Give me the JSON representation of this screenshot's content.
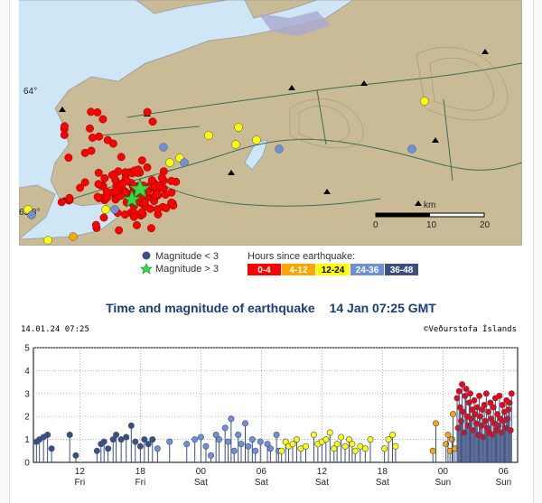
{
  "map": {
    "lat_labels": [
      "64°",
      "63.8°"
    ],
    "scale_label": "km",
    "scale_ticks": [
      "0",
      "10",
      "20"
    ]
  },
  "legend": {
    "magnitude_small": "Magnitude < 3",
    "magnitude_large": "Magnitude > 3",
    "hours_label": "Hours since earthquake:",
    "hours_bins": [
      {
        "label": "0-4",
        "color": "#ff0000",
        "text_color": "#ffffff"
      },
      {
        "label": "4-12",
        "color": "#ffa500",
        "text_color": "#ffffff"
      },
      {
        "label": "12-24",
        "color": "#ffff00",
        "text_color": "#000000"
      },
      {
        "label": "24-36",
        "color": "#6f8fd6",
        "text_color": "#ffffff"
      },
      {
        "label": "36-48",
        "color": "#3b4f80",
        "text_color": "#ffffff"
      }
    ]
  },
  "title": {
    "main": "Time and magnitude of earthquake",
    "timestamp": "14 Jan 07:25 GMT"
  },
  "chart_header": {
    "left": "14.01.24 07:25",
    "right": "©Veðurstofa Íslands"
  },
  "chart_data": {
    "type": "scatter",
    "y_ticks": [
      "0",
      "1",
      "2",
      "3",
      "4",
      "5"
    ],
    "ylim": [
      0,
      5
    ],
    "x_ticks": [
      {
        "hour": "12",
        "day": "Fri"
      },
      {
        "hour": "18",
        "day": "Fri"
      },
      {
        "hour": "00",
        "day": "Sat"
      },
      {
        "hour": "06",
        "day": "Sat"
      },
      {
        "hour": "12",
        "day": "Sat"
      },
      {
        "hour": "18",
        "day": "Sat"
      },
      {
        "hour": "00",
        "day": "Sun"
      },
      {
        "hour": "06",
        "day": "Sun"
      }
    ],
    "series": [
      {
        "color": "#3b4f80",
        "points": [
          [
            0.3,
            0.9
          ],
          [
            0.6,
            1.0
          ],
          [
            1.0,
            1.1
          ],
          [
            1.4,
            1.2
          ],
          [
            1.8,
            0.6
          ],
          [
            3.6,
            1.2
          ],
          [
            4.2,
            0.3
          ],
          [
            6.3,
            0.5
          ],
          [
            6.7,
            0.8
          ],
          [
            7.0,
            0.9
          ],
          [
            7.4,
            0.6
          ],
          [
            7.9,
            1.0
          ],
          [
            8.2,
            1.2
          ],
          [
            8.7,
            1.0
          ],
          [
            9.2,
            1.1
          ],
          [
            9.7,
            1.6
          ],
          [
            10.1,
            0.9
          ],
          [
            10.6,
            0.7
          ],
          [
            11.0,
            1.0
          ],
          [
            11.4,
            0.8
          ],
          [
            11.8,
            1.0
          ]
        ]
      },
      {
        "color": "#6f8fd6",
        "points": [
          [
            12.3,
            0.6
          ],
          [
            13.5,
            0.9
          ],
          [
            15.2,
            0.8
          ],
          [
            16.0,
            1.0
          ],
          [
            16.6,
            1.1
          ],
          [
            17.1,
            0.7
          ],
          [
            17.6,
            0.3
          ],
          [
            18.1,
            1.2
          ],
          [
            18.4,
            1.0
          ],
          [
            19.0,
            1.5
          ],
          [
            19.3,
            0.9
          ],
          [
            19.6,
            1.9
          ],
          [
            19.9,
            0.5
          ],
          [
            20.3,
            1.2
          ],
          [
            20.6,
            0.8
          ],
          [
            21.0,
            1.7
          ],
          [
            21.3,
            0.7
          ],
          [
            21.7,
            1.0
          ],
          [
            22.0,
            0.5
          ],
          [
            22.5,
            0.9
          ],
          [
            23.2,
            0.8
          ],
          [
            23.5,
            0.6
          ],
          [
            24.1,
            1.2
          ],
          [
            24.3,
            0.5
          ]
        ]
      },
      {
        "color": "#ffff00",
        "points": [
          [
            24.6,
            0.5
          ],
          [
            25.0,
            0.9
          ],
          [
            25.3,
            0.7
          ],
          [
            25.7,
            0.8
          ],
          [
            26.1,
            1.0
          ],
          [
            26.5,
            0.6
          ],
          [
            27.0,
            0.7
          ],
          [
            27.8,
            1.2
          ],
          [
            28.2,
            0.8
          ],
          [
            28.6,
            0.9
          ],
          [
            29.0,
            1.0
          ],
          [
            29.4,
            1.3
          ],
          [
            29.8,
            0.6
          ],
          [
            30.1,
            0.8
          ],
          [
            30.5,
            1.1
          ],
          [
            30.9,
            0.7
          ],
          [
            31.3,
            1.0
          ],
          [
            31.6,
            0.8
          ],
          [
            31.9,
            0.5
          ],
          [
            32.4,
            0.7
          ],
          [
            32.9,
            0.6
          ],
          [
            33.4,
            1.0
          ],
          [
            34.8,
            0.6
          ],
          [
            35.2,
            1.0
          ],
          [
            35.6,
            1.2
          ],
          [
            35.9,
            0.7
          ]
        ]
      },
      {
        "color": "#ffa500",
        "points": [
          [
            39.6,
            0.5
          ],
          [
            39.9,
            1.7
          ],
          [
            40.9,
            0.8
          ],
          [
            41.1,
            1.2
          ],
          [
            41.3,
            0.5
          ],
          [
            41.5,
            1.0
          ],
          [
            41.6,
            2.1
          ],
          [
            41.8,
            0.6
          ]
        ]
      },
      {
        "color": "#ff0000",
        "points": [
          [
            42.0,
            2.8
          ],
          [
            42.1,
            1.5
          ],
          [
            42.2,
            3.1
          ],
          [
            42.3,
            2.4
          ],
          [
            42.4,
            1.8
          ],
          [
            42.5,
            3.4
          ],
          [
            42.6,
            2.2
          ],
          [
            42.7,
            1.3
          ],
          [
            42.8,
            2.9
          ],
          [
            42.9,
            3.2
          ],
          [
            43.0,
            2.0
          ],
          [
            43.1,
            1.6
          ],
          [
            43.2,
            2.6
          ],
          [
            43.3,
            3.0
          ],
          [
            43.4,
            1.9
          ],
          [
            43.5,
            2.3
          ],
          [
            43.6,
            1.4
          ],
          [
            43.7,
            2.7
          ],
          [
            43.8,
            2.1
          ],
          [
            43.9,
            1.7
          ],
          [
            44.0,
            2.4
          ],
          [
            44.1,
            1.2
          ],
          [
            44.2,
            2.9
          ],
          [
            44.3,
            2.0
          ],
          [
            44.4,
            1.6
          ],
          [
            44.5,
            2.3
          ],
          [
            44.6,
            1.1
          ],
          [
            44.7,
            2.5
          ],
          [
            44.8,
            1.8
          ],
          [
            44.9,
            3.0
          ],
          [
            45.0,
            1.5
          ],
          [
            45.1,
            2.2
          ],
          [
            45.2,
            1.3
          ],
          [
            45.3,
            2.6
          ],
          [
            45.4,
            1.9
          ],
          [
            45.5,
            1.2
          ],
          [
            45.6,
            2.4
          ],
          [
            45.7,
            1.7
          ],
          [
            45.8,
            2.8
          ],
          [
            45.9,
            1.4
          ],
          [
            46.0,
            2.1
          ],
          [
            46.1,
            1.6
          ],
          [
            46.2,
            2.9
          ],
          [
            46.3,
            1.9
          ],
          [
            46.4,
            1.3
          ],
          [
            46.5,
            2.5
          ],
          [
            46.6,
            1.8
          ],
          [
            46.7,
            2.2
          ],
          [
            46.8,
            1.5
          ],
          [
            46.9,
            2.7
          ],
          [
            47.0,
            1.9
          ],
          [
            47.1,
            2.3
          ],
          [
            47.2,
            2.6
          ],
          [
            47.3,
            1.4
          ],
          [
            47.4,
            3.0
          ]
        ]
      }
    ]
  }
}
